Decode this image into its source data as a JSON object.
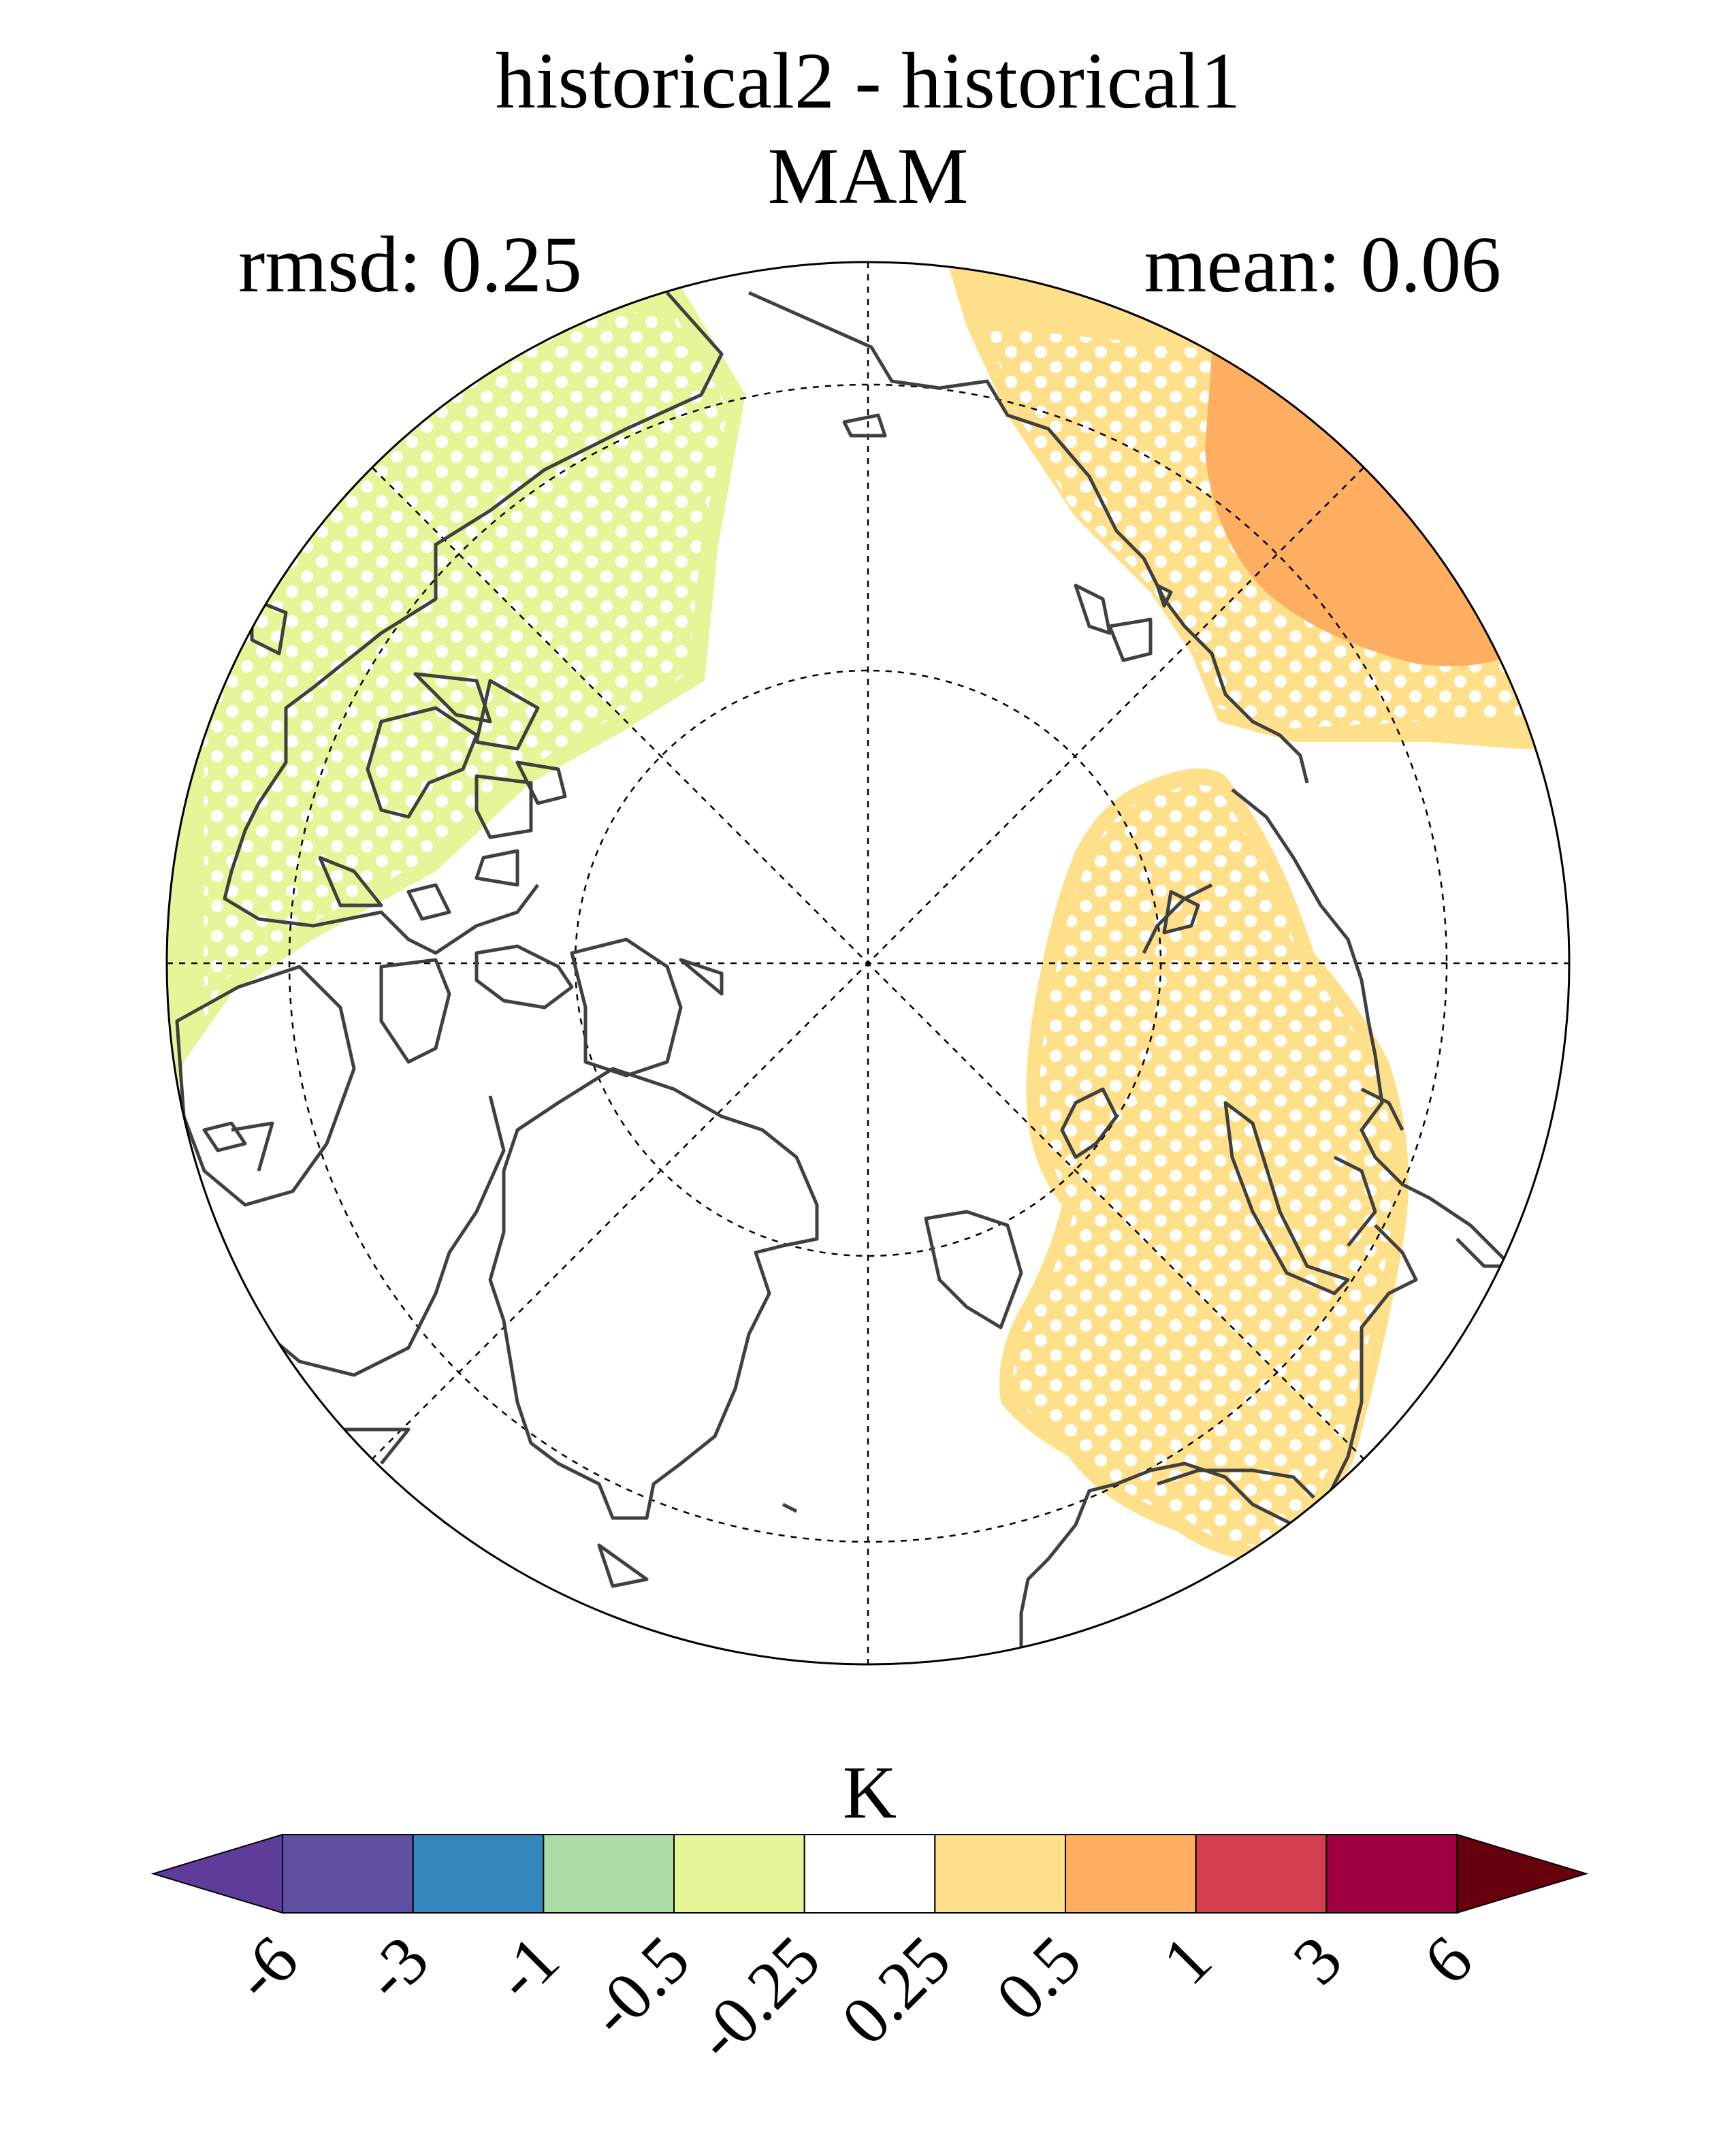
{
  "title": {
    "line1": "historical2 - historical1",
    "line2": "MAM"
  },
  "stats": {
    "rmsd": "rmsd: 0.25",
    "mean": "mean: 0.06"
  },
  "map": {
    "projection": "north-polar-stereographic",
    "graticule": "dashed",
    "stippling": "white dots over significant regions",
    "regions": [
      {
        "name": "north-atlantic-anomaly",
        "value_bin": "-0.5 to -0.25",
        "color": "#e6f598"
      },
      {
        "name": "pacific-anomaly",
        "value_bin": "0.25 to 0.5",
        "color": "#fee08b"
      },
      {
        "name": "pacific-strong-anomaly",
        "value_bin": "0.5 to 1",
        "color": "#fdae61"
      },
      {
        "name": "siberia-anomaly",
        "value_bin": "0.25 to 0.5",
        "color": "#fee08b"
      }
    ]
  },
  "colorbar": {
    "unit": "K",
    "ticks": [
      "-6",
      "-3",
      "-1",
      "-0.5",
      "-0.25",
      "0.25",
      "0.5",
      "1",
      "3",
      "6"
    ],
    "colors": [
      "#5e3c99",
      "#5e4fa2",
      "#3288bd",
      "#abdda4",
      "#e6f598",
      "#ffffff",
      "#fee08b",
      "#fdae61",
      "#d53e4f",
      "#9e0142",
      "#67000d"
    ]
  }
}
